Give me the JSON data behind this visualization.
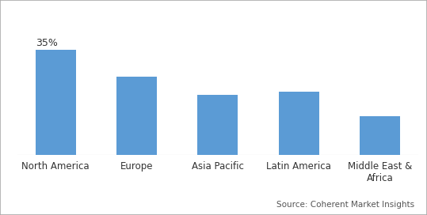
{
  "categories": [
    "North America",
    "Europe",
    "Asia Pacific",
    "Latin America",
    "Middle East &\nAfrica"
  ],
  "values": [
    35,
    26,
    20,
    21,
    13
  ],
  "bar_color": "#5b9bd5",
  "annotation": "35%",
  "annotation_index": 0,
  "source_text": "Source: Coherent Market Insights",
  "ylim": [
    0,
    43
  ],
  "bar_width": 0.5,
  "background_color": "#ffffff",
  "spine_color": "#bbbbbb",
  "label_fontsize": 8.5,
  "annotation_fontsize": 9,
  "border_color": "#aaaaaa"
}
